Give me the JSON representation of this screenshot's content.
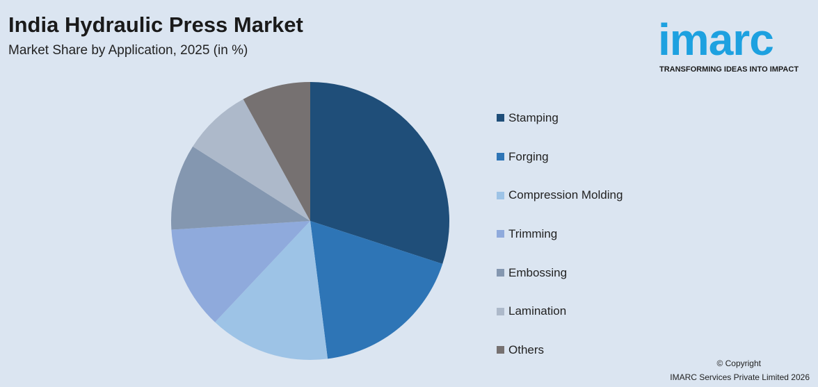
{
  "header": {
    "title": "India Hydraulic Press Market",
    "subtitle": "Market Share by Application, 2025 (in %)"
  },
  "logo": {
    "text": "imarc",
    "tagline": "TRANSFORMING IDEAS INTO IMPACT"
  },
  "footer": {
    "copyright": "© Copyright",
    "company": "IMARC Services Private Limited 2026"
  },
  "chart_data": {
    "type": "pie",
    "title": "India Hydraulic Press Market",
    "subtitle": "Market Share by Application, 2025 (in %)",
    "legend_position": "right",
    "categories": [
      "Stamping",
      "Forging",
      "Compression Molding",
      "Trimming",
      "Embossing",
      "Lamination",
      "Others"
    ],
    "values": [
      30,
      18,
      14,
      12,
      10,
      8,
      8
    ],
    "colors": [
      "#1f4e79",
      "#2e75b6",
      "#9dc3e6",
      "#8faadc",
      "#8497b0",
      "#adb9ca",
      "#767171"
    ]
  }
}
